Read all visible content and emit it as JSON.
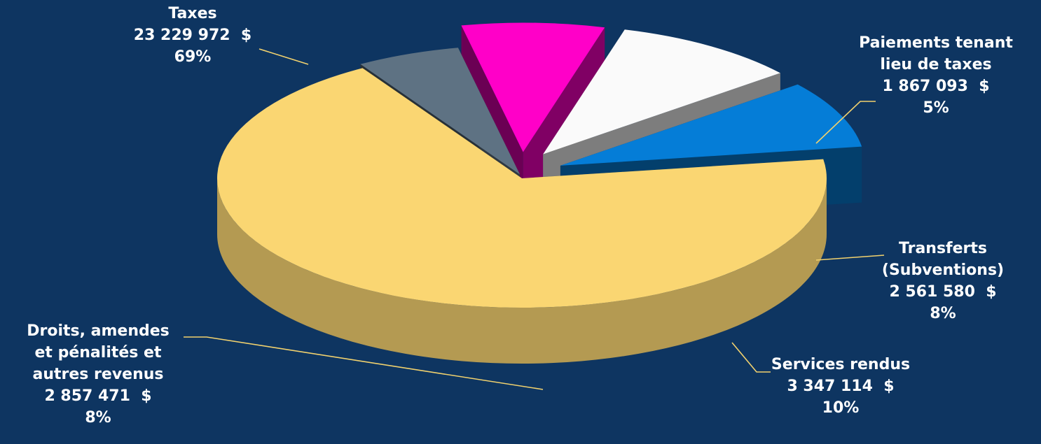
{
  "chart_data": {
    "type": "pie",
    "title": "",
    "currency": "$",
    "slices": [
      {
        "name": "Taxes",
        "label_lines": [
          "Taxes"
        ],
        "amount": "23 229 972",
        "value": 23229972,
        "percent": "69%",
        "color": "#fad672"
      },
      {
        "name": "Paiements tenant lieu de taxes",
        "label_lines": [
          "Paiements tenant",
          "lieu de taxes"
        ],
        "amount": "1 867 093",
        "value": 1867093,
        "percent": "5%",
        "color": "#5e7283"
      },
      {
        "name": "Transferts (Subventions)",
        "label_lines": [
          "Transferts",
          "(Subventions)"
        ],
        "amount": "2 561 580",
        "value": 2561580,
        "percent": "8%",
        "color": "#ff00c8"
      },
      {
        "name": "Services rendus",
        "label_lines": [
          "Services rendus"
        ],
        "amount": "3 347 114",
        "value": 3347114,
        "percent": "10%",
        "color": "#fafafa"
      },
      {
        "name": "Droits, amendes et pénalités et autres revenus",
        "label_lines": [
          "Droits, amendes",
          "et pénalités et",
          "autres revenus"
        ],
        "amount": "2 857 471",
        "value": 2857471,
        "percent": "8%",
        "color": "#057dd7"
      }
    ],
    "style": "3d-exploded",
    "background": "#0e3561",
    "leader_line_color": "#f2d26e"
  }
}
